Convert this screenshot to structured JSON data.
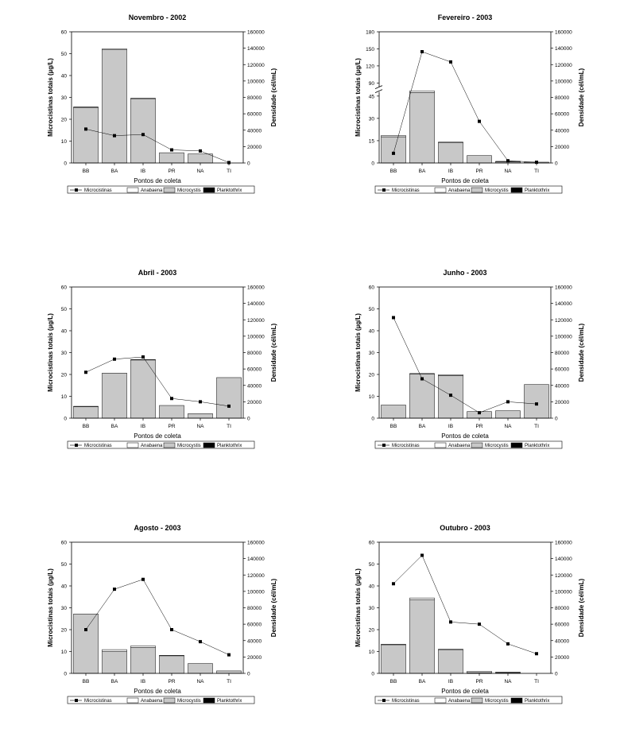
{
  "chart_data": [
    {
      "type": "bar",
      "title": "Novembro - 2002",
      "xlabel": "Pontos de coleta",
      "ylabel": "Microcistinas totais (µg/L)",
      "y2label": "Densidade (cél/mL)",
      "categories": [
        "BB",
        "BA",
        "IB",
        "PR",
        "NA",
        "TI"
      ],
      "ylim": [
        0,
        60
      ],
      "yticks": [
        0,
        10,
        20,
        30,
        40,
        50,
        60
      ],
      "y2lim": [
        0,
        160000
      ],
      "y2ticks": [
        0,
        20000,
        40000,
        60000,
        80000,
        100000,
        120000,
        140000,
        160000
      ],
      "series": [
        {
          "name": "Microcistinas",
          "kind": "line",
          "axis": "left",
          "values": [
            15.5,
            12.5,
            13.0,
            6.0,
            5.5,
            0.2
          ]
        },
        {
          "name": "Anabaena",
          "kind": "bar-stack",
          "axis": "right",
          "values": [
            0,
            1200,
            500,
            0,
            0,
            0
          ]
        },
        {
          "name": "Microcystis",
          "kind": "bar-stack",
          "axis": "right",
          "values": [
            67800,
            138000,
            78500,
            12500,
            11000,
            0
          ]
        },
        {
          "name": "Planktothrix",
          "kind": "bar-stack",
          "axis": "right",
          "values": [
            500,
            0,
            0,
            0,
            0,
            0
          ]
        }
      ]
    },
    {
      "type": "bar",
      "title": "Fevereiro - 2003",
      "xlabel": "Pontos de coleta",
      "ylabel": "Microcistinas totais (µg/L)",
      "y2label": "Densidade (cél/mL)",
      "categories": [
        "BB",
        "BA",
        "IB",
        "PR",
        "NA",
        "TI"
      ],
      "ylim": [
        0,
        180
      ],
      "yticks": [
        0,
        15,
        30,
        45,
        90,
        120,
        150,
        180
      ],
      "axis_break": [
        45,
        90
      ],
      "y2lim": [
        0,
        160000
      ],
      "y2ticks": [
        0,
        20000,
        40000,
        60000,
        80000,
        100000,
        120000,
        140000,
        160000
      ],
      "series": [
        {
          "name": "Microcistinas",
          "kind": "line",
          "axis": "left",
          "values": [
            6.5,
            145,
            127,
            28,
            1.5,
            0.5
          ]
        },
        {
          "name": "Anabaena",
          "kind": "bar-stack",
          "axis": "right",
          "values": [
            1500,
            2000,
            500,
            0,
            500,
            0
          ]
        },
        {
          "name": "Microcystis",
          "kind": "bar-stack",
          "axis": "right",
          "values": [
            32000,
            86000,
            25000,
            9000,
            1500,
            1000
          ]
        },
        {
          "name": "Planktothrix",
          "kind": "bar-stack",
          "axis": "right",
          "values": [
            0,
            0,
            0,
            0,
            0,
            0
          ]
        }
      ]
    },
    {
      "type": "bar",
      "title": "Abril - 2003",
      "xlabel": "Pontos de coleta",
      "ylabel": "Microcistinas totais (µg/L)",
      "y2label": "Densidade (cél/mL)",
      "categories": [
        "BB",
        "BA",
        "IB",
        "PR",
        "NA",
        "TI"
      ],
      "ylim": [
        0,
        60
      ],
      "yticks": [
        0,
        10,
        20,
        30,
        40,
        50,
        60
      ],
      "y2lim": [
        0,
        160000
      ],
      "y2ticks": [
        0,
        20000,
        40000,
        60000,
        80000,
        100000,
        120000,
        140000,
        160000
      ],
      "series": [
        {
          "name": "Microcistinas",
          "kind": "line",
          "axis": "left",
          "values": [
            21,
            27,
            28,
            9,
            7.5,
            5.5
          ]
        },
        {
          "name": "Anabaena",
          "kind": "bar-stack",
          "axis": "right",
          "values": [
            500,
            0,
            500,
            0,
            0,
            0
          ]
        },
        {
          "name": "Microcystis",
          "kind": "bar-stack",
          "axis": "right",
          "values": [
            14000,
            55000,
            71000,
            15500,
            5500,
            49500
          ]
        },
        {
          "name": "Planktothrix",
          "kind": "bar-stack",
          "axis": "right",
          "values": [
            0,
            0,
            0,
            0,
            0,
            0
          ]
        }
      ]
    },
    {
      "type": "bar",
      "title": "Junho - 2003",
      "xlabel": "Pontos de coleta",
      "ylabel": "Microcistinas totais (µg/L)",
      "y2label": "Densidade (cél/mL)",
      "categories": [
        "BB",
        "BA",
        "IB",
        "PR",
        "NA",
        "TI"
      ],
      "ylim": [
        0,
        60
      ],
      "yticks": [
        0,
        10,
        20,
        30,
        40,
        50,
        60
      ],
      "y2lim": [
        0,
        160000
      ],
      "y2ticks": [
        0,
        20000,
        40000,
        60000,
        80000,
        100000,
        120000,
        140000,
        160000
      ],
      "series": [
        {
          "name": "Microcistinas",
          "kind": "line",
          "axis": "left",
          "values": [
            46,
            18,
            10.5,
            2.5,
            7.5,
            6.5
          ]
        },
        {
          "name": "Anabaena",
          "kind": "bar-stack",
          "axis": "right",
          "values": [
            0,
            500,
            1000,
            0,
            0,
            0
          ]
        },
        {
          "name": "Microcystis",
          "kind": "bar-stack",
          "axis": "right",
          "values": [
            16000,
            54000,
            52000,
            8000,
            9000,
            41000
          ]
        },
        {
          "name": "Planktothrix",
          "kind": "bar-stack",
          "axis": "right",
          "values": [
            0,
            0,
            0,
            0,
            0,
            0
          ]
        }
      ]
    },
    {
      "type": "bar",
      "title": "Agosto - 2003",
      "xlabel": "Pontos de coleta",
      "ylabel": "Microcistinas totais (µg/L)",
      "y2label": "Densidade (cél/mL)",
      "categories": [
        "BB",
        "BA",
        "IB",
        "PR",
        "NA",
        "TI"
      ],
      "ylim": [
        0,
        60
      ],
      "yticks": [
        0,
        10,
        20,
        30,
        40,
        50,
        60
      ],
      "y2lim": [
        0,
        160000
      ],
      "y2ticks": [
        0,
        20000,
        40000,
        60000,
        80000,
        100000,
        120000,
        140000,
        160000
      ],
      "series": [
        {
          "name": "Microcistinas",
          "kind": "line",
          "axis": "left",
          "values": [
            20,
            38.5,
            43,
            20,
            14.5,
            8.5
          ]
        },
        {
          "name": "Anabaena",
          "kind": "bar-stack",
          "axis": "right",
          "values": [
            0,
            2000,
            2000,
            500,
            0,
            0
          ]
        },
        {
          "name": "Microcystis",
          "kind": "bar-stack",
          "axis": "right",
          "values": [
            72500,
            27000,
            31500,
            21500,
            12000,
            3000
          ]
        },
        {
          "name": "Planktothrix",
          "kind": "bar-stack",
          "axis": "right",
          "values": [
            0,
            0,
            0,
            0,
            0,
            0
          ]
        }
      ]
    },
    {
      "type": "bar",
      "title": "Outubro - 2003",
      "xlabel": "Pontos de coleta",
      "ylabel": "Microcistinas totais (µg/L)",
      "y2label": "Densidade (cél/mL)",
      "categories": [
        "BB",
        "BA",
        "IB",
        "PR",
        "NA",
        "TI"
      ],
      "ylim": [
        0,
        60
      ],
      "yticks": [
        0,
        10,
        20,
        30,
        40,
        50,
        60
      ],
      "y2lim": [
        0,
        160000
      ],
      "y2ticks": [
        0,
        20000,
        40000,
        60000,
        80000,
        100000,
        120000,
        140000,
        160000
      ],
      "series": [
        {
          "name": "Microcistinas",
          "kind": "line",
          "axis": "left",
          "values": [
            41,
            54,
            23.5,
            22.5,
            13.5,
            9
          ]
        },
        {
          "name": "Anabaena",
          "kind": "bar-stack",
          "axis": "right",
          "values": [
            500,
            2000,
            500,
            1500,
            500,
            0
          ]
        },
        {
          "name": "Microcystis",
          "kind": "bar-stack",
          "axis": "right",
          "values": [
            35000,
            90000,
            29000,
            1000,
            1000,
            0
          ]
        },
        {
          "name": "Planktothrix",
          "kind": "bar-stack",
          "axis": "right",
          "values": [
            0,
            0,
            0,
            0,
            0,
            0
          ]
        }
      ]
    }
  ],
  "colors": {
    "Microcistinas": "#000000",
    "Anabaena": "#ffffff",
    "Microcystis": "#c8c8c8",
    "Planktothrix": "#000000",
    "axis": "#000000"
  }
}
